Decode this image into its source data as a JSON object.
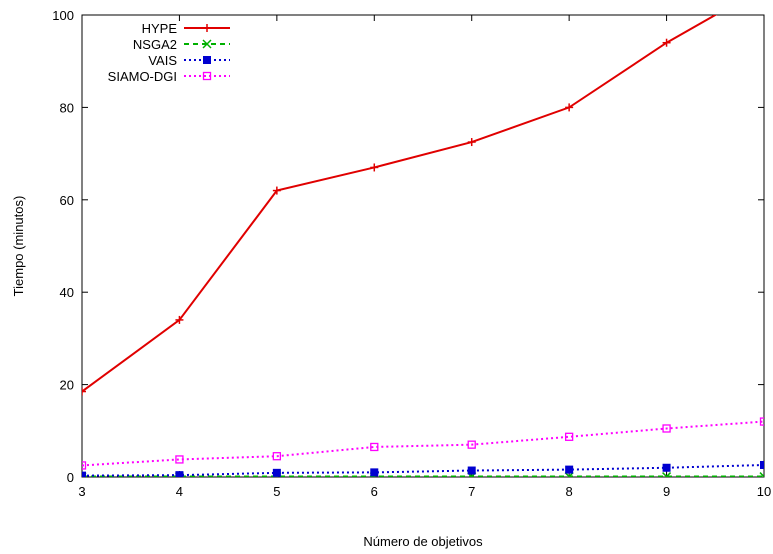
{
  "chart_data": {
    "type": "line",
    "xlabel": "Número de objetivos",
    "ylabel": "Tiempo (minutos)",
    "x": [
      3,
      4,
      5,
      6,
      7,
      8,
      9,
      10
    ],
    "xlim": [
      3,
      10
    ],
    "ylim": [
      0,
      100
    ],
    "yticks": [
      0,
      20,
      40,
      60,
      80,
      100
    ],
    "xticks": [
      3,
      4,
      5,
      6,
      7,
      8,
      9,
      10
    ],
    "grid": false,
    "legend_position": "top-left",
    "series": [
      {
        "name": "HYPE",
        "color": "#e00000",
        "marker": "plus",
        "dash": "solid",
        "values": [
          18.5,
          34,
          62,
          67,
          72.5,
          80,
          94,
          106
        ]
      },
      {
        "name": "NSGA2",
        "color": "#00b000",
        "marker": "cross",
        "dash": "dashed",
        "values": [
          0.1,
          0.1,
          0.1,
          0.1,
          0.1,
          0.1,
          0.1,
          0.1
        ]
      },
      {
        "name": "VAIS",
        "color": "#0000d0",
        "marker": "filled-square",
        "dash": "dotted",
        "values": [
          0.3,
          0.4,
          0.9,
          1.0,
          1.4,
          1.6,
          2.0,
          2.6
        ]
      },
      {
        "name": "SIAMO-DGI",
        "color": "#ff00ff",
        "marker": "open-square",
        "dash": "dotted",
        "values": [
          2.5,
          3.8,
          4.5,
          6.5,
          7.0,
          8.7,
          10.5,
          12.0
        ]
      }
    ]
  }
}
